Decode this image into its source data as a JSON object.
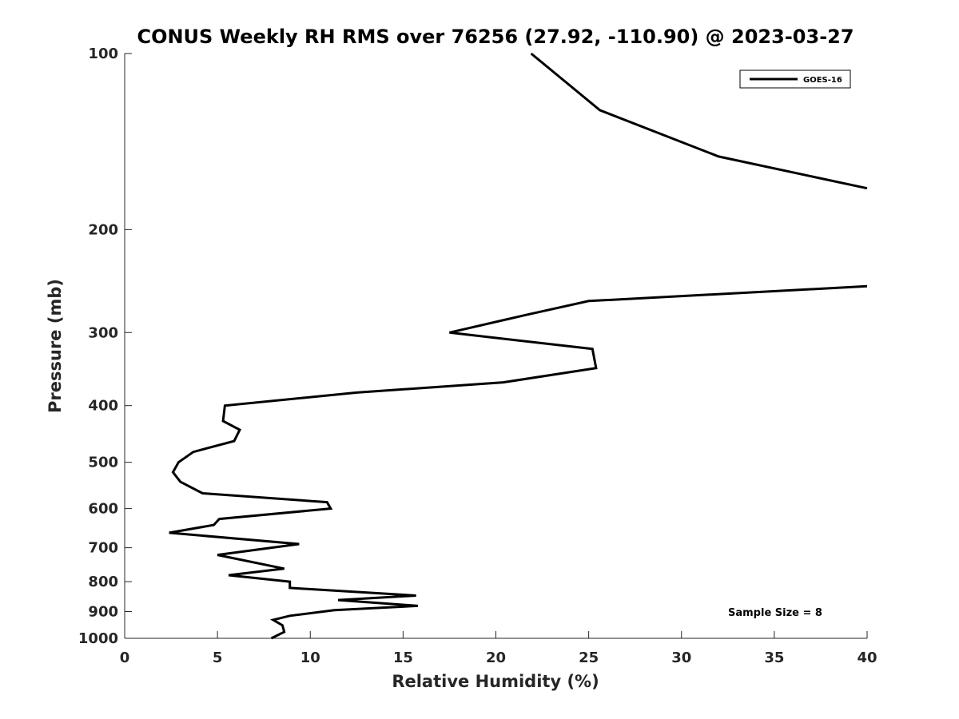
{
  "chart_data": {
    "type": "line",
    "title": "CONUS Weekly RH RMS over 76256 (27.92, -110.90) @ 2023-03-27",
    "xlabel": "Relative Humidity (%)",
    "ylabel": "Pressure (mb)",
    "xlim": [
      0,
      40
    ],
    "ylim": [
      100,
      1000
    ],
    "yscale": "log",
    "yreversed": true,
    "grid": false,
    "legend_placement": "top-right",
    "x_ticks": [
      "0",
      "5",
      "10",
      "15",
      "20",
      "25",
      "30",
      "35",
      "40"
    ],
    "y_ticks": [
      "100",
      "200",
      "300",
      "400",
      "500",
      "600",
      "700",
      "800",
      "900",
      "1000"
    ],
    "annotation": "Sample Size = 8",
    "series": [
      {
        "name": "GOES-16",
        "color": "#000000",
        "points": [
          [
            21.9,
            100
          ],
          [
            25.6,
            125
          ],
          [
            32.0,
            150
          ],
          [
            40.0,
            170
          ],
          null,
          [
            40.0,
            250
          ],
          [
            25.0,
            265
          ],
          [
            21.6,
            280
          ],
          [
            17.5,
            300
          ],
          [
            25.2,
            320
          ],
          [
            25.4,
            345
          ],
          [
            20.4,
            365
          ],
          [
            12.5,
            380
          ],
          [
            5.4,
            400
          ],
          [
            5.3,
            425
          ],
          [
            6.2,
            440
          ],
          [
            5.9,
            460
          ],
          [
            3.7,
            480
          ],
          [
            2.9,
            500
          ],
          [
            2.6,
            520
          ],
          [
            3.0,
            540
          ],
          [
            4.2,
            565
          ],
          [
            10.9,
            585
          ],
          [
            11.1,
            600
          ],
          [
            5.1,
            625
          ],
          [
            4.8,
            640
          ],
          [
            2.4,
            660
          ],
          [
            9.4,
            690
          ],
          [
            7.9,
            700
          ],
          [
            5.0,
            720
          ],
          [
            8.6,
            760
          ],
          [
            5.6,
            780
          ],
          [
            8.9,
            800
          ],
          [
            8.9,
            820
          ],
          [
            15.7,
            845
          ],
          [
            11.5,
            860
          ],
          [
            15.8,
            880
          ],
          [
            11.3,
            895
          ],
          [
            8.9,
            915
          ],
          [
            8.0,
            930
          ],
          [
            8.5,
            950
          ],
          [
            8.6,
            975
          ],
          [
            7.9,
            1000
          ]
        ]
      }
    ]
  }
}
